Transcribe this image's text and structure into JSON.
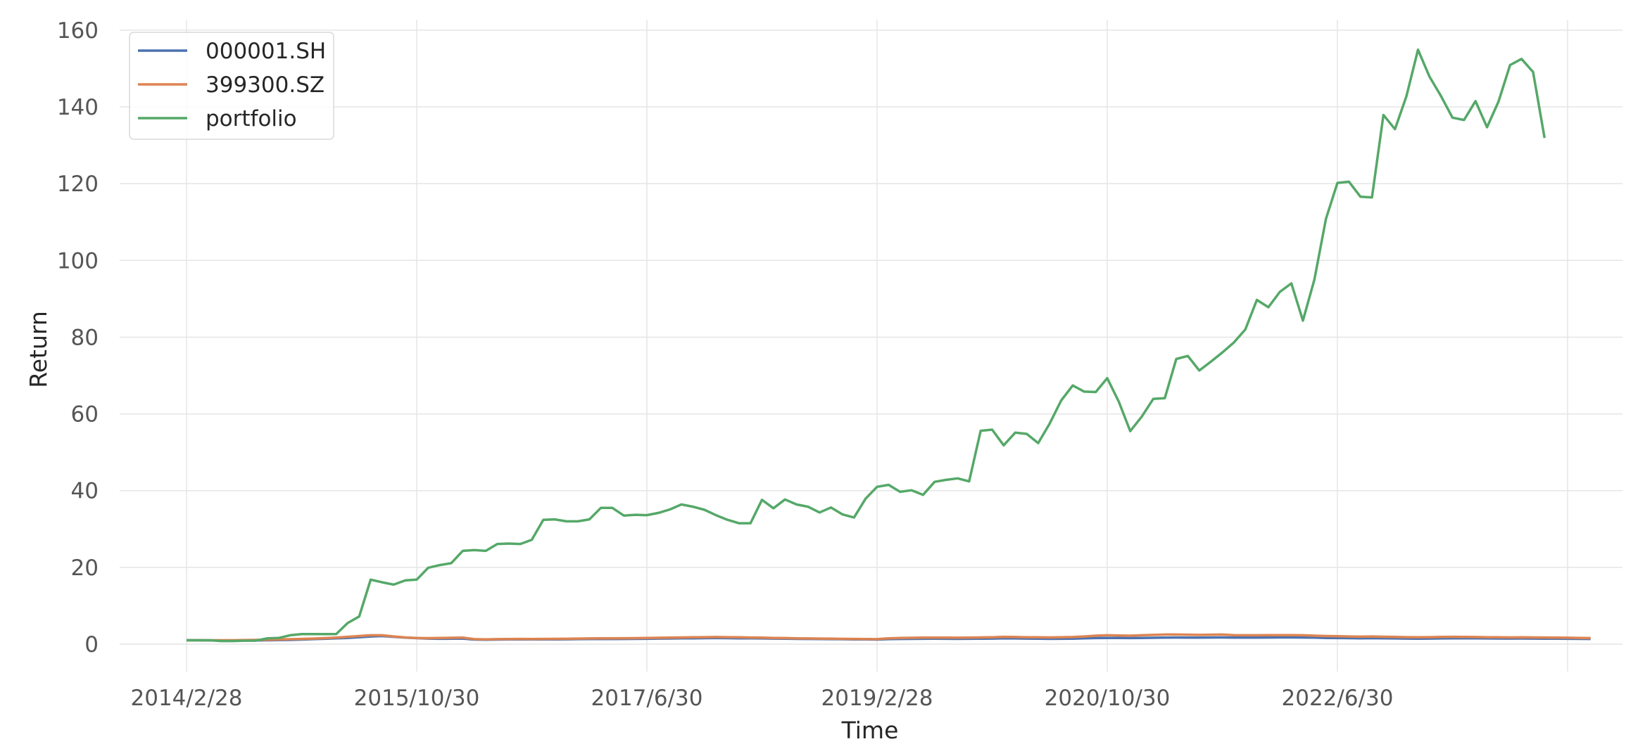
{
  "chart_data": {
    "type": "line",
    "xlabel": "Time",
    "ylabel": "Return",
    "ylim": [
      -8,
      162
    ],
    "y_ticks": [
      0,
      20,
      40,
      60,
      80,
      100,
      120,
      140,
      160
    ],
    "y_tick_labels": [
      "0",
      "20",
      "40",
      "60",
      "80",
      "100",
      "120",
      "140",
      "160"
    ],
    "x_ticks": [
      0,
      20,
      40,
      60,
      80,
      100,
      120
    ],
    "x_tick_labels": [
      "2014/2/28",
      "2015/10/30",
      "2017/6/30",
      "2019/2/28",
      "2020/10/30",
      "2022/6/30",
      ""
    ],
    "grid": true,
    "legend_position": "top-left",
    "series": [
      {
        "name": "000001.SH",
        "color": "#4c72b0",
        "values": [
          1.0,
          1.0,
          0.98,
          0.95,
          0.95,
          0.96,
          0.97,
          1.0,
          1.05,
          1.1,
          1.2,
          1.3,
          1.4,
          1.5,
          1.6,
          1.8,
          2.0,
          2.1,
          1.9,
          1.7,
          1.55,
          1.45,
          1.4,
          1.42,
          1.45,
          1.2,
          1.15,
          1.2,
          1.22,
          1.24,
          1.22,
          1.23,
          1.25,
          1.26,
          1.3,
          1.32,
          1.33,
          1.34,
          1.35,
          1.37,
          1.4,
          1.45,
          1.47,
          1.5,
          1.52,
          1.55,
          1.58,
          1.56,
          1.53,
          1.5,
          1.48,
          1.45,
          1.42,
          1.38,
          1.35,
          1.33,
          1.3,
          1.28,
          1.25,
          1.22,
          1.2,
          1.3,
          1.35,
          1.38,
          1.4,
          1.42,
          1.4,
          1.38,
          1.4,
          1.42,
          1.45,
          1.5,
          1.48,
          1.45,
          1.42,
          1.38,
          1.4,
          1.42,
          1.5,
          1.58,
          1.62,
          1.6,
          1.58,
          1.62,
          1.65,
          1.7,
          1.72,
          1.7,
          1.68,
          1.72,
          1.75,
          1.7,
          1.68,
          1.7,
          1.72,
          1.74,
          1.75,
          1.72,
          1.68,
          1.62,
          1.58,
          1.55,
          1.52,
          1.55,
          1.5,
          1.48,
          1.45,
          1.42,
          1.45,
          1.48,
          1.5,
          1.52,
          1.5,
          1.48,
          1.46,
          1.45,
          1.47,
          1.45,
          1.43,
          1.42,
          1.4,
          1.38,
          1.36
        ]
      },
      {
        "name": "399300.SZ",
        "color": "#dd8452",
        "values": [
          1.0,
          1.0,
          1.0,
          1.0,
          1.0,
          1.05,
          1.1,
          1.15,
          1.2,
          1.28,
          1.35,
          1.45,
          1.55,
          1.7,
          1.9,
          2.1,
          2.3,
          2.3,
          2.0,
          1.75,
          1.6,
          1.55,
          1.6,
          1.65,
          1.7,
          1.3,
          1.25,
          1.3,
          1.33,
          1.35,
          1.33,
          1.35,
          1.38,
          1.4,
          1.45,
          1.48,
          1.5,
          1.52,
          1.54,
          1.56,
          1.6,
          1.65,
          1.7,
          1.75,
          1.78,
          1.82,
          1.85,
          1.82,
          1.78,
          1.72,
          1.68,
          1.62,
          1.58,
          1.52,
          1.48,
          1.45,
          1.42,
          1.38,
          1.35,
          1.32,
          1.3,
          1.5,
          1.6,
          1.65,
          1.68,
          1.7,
          1.68,
          1.66,
          1.7,
          1.75,
          1.8,
          1.9,
          1.85,
          1.8,
          1.78,
          1.75,
          1.8,
          1.85,
          2.0,
          2.2,
          2.3,
          2.25,
          2.2,
          2.3,
          2.4,
          2.5,
          2.5,
          2.45,
          2.4,
          2.45,
          2.5,
          2.35,
          2.3,
          2.3,
          2.32,
          2.35,
          2.35,
          2.3,
          2.2,
          2.1,
          2.05,
          2.0,
          1.95,
          2.0,
          1.92,
          1.88,
          1.82,
          1.78,
          1.82,
          1.86,
          1.9,
          1.88,
          1.85,
          1.8,
          1.78,
          1.75,
          1.78,
          1.75,
          1.72,
          1.7,
          1.66,
          1.62,
          1.58
        ]
      },
      {
        "name": "portfolio",
        "color": "#55a868",
        "values": [
          1.0,
          1.0,
          1.0,
          0.8,
          0.8,
          0.9,
          0.9,
          1.5,
          1.6,
          2.3,
          2.6,
          2.6,
          2.6,
          2.6,
          5.5,
          7.2,
          16.8,
          16.1,
          15.5,
          16.6,
          16.8,
          19.9,
          20.6,
          21.1,
          24.3,
          24.5,
          24.3,
          26.1,
          26.2,
          26.1,
          27.2,
          32.4,
          32.5,
          32.0,
          32.0,
          32.5,
          35.5,
          35.5,
          33.5,
          33.7,
          33.6,
          34.2,
          35.1,
          36.4,
          35.8,
          35.0,
          33.6,
          32.4,
          31.5,
          31.5,
          37.6,
          35.4,
          37.7,
          36.4,
          35.8,
          34.3,
          35.6,
          33.8,
          33.0,
          37.9,
          41.0,
          41.5,
          39.7,
          40.1,
          38.9,
          42.3,
          42.8,
          43.2,
          42.4,
          55.6,
          55.9,
          51.8,
          55.1,
          54.8,
          52.4,
          57.5,
          63.5,
          67.4,
          65.8,
          65.7,
          69.3,
          63.2,
          55.5,
          59.3,
          63.9,
          64.1,
          74.3,
          75.1,
          71.3,
          73.6,
          76.0,
          78.6,
          82.0,
          89.7,
          87.8,
          91.8,
          94.0,
          84.3,
          95.0,
          110.8,
          120.2,
          120.5,
          116.6,
          116.4,
          137.9,
          134.2,
          142.8,
          154.9,
          147.9,
          142.8,
          137.2,
          136.6,
          141.5,
          134.7,
          141.4,
          150.9,
          152.5,
          149.1,
          131.9
        ]
      }
    ]
  }
}
